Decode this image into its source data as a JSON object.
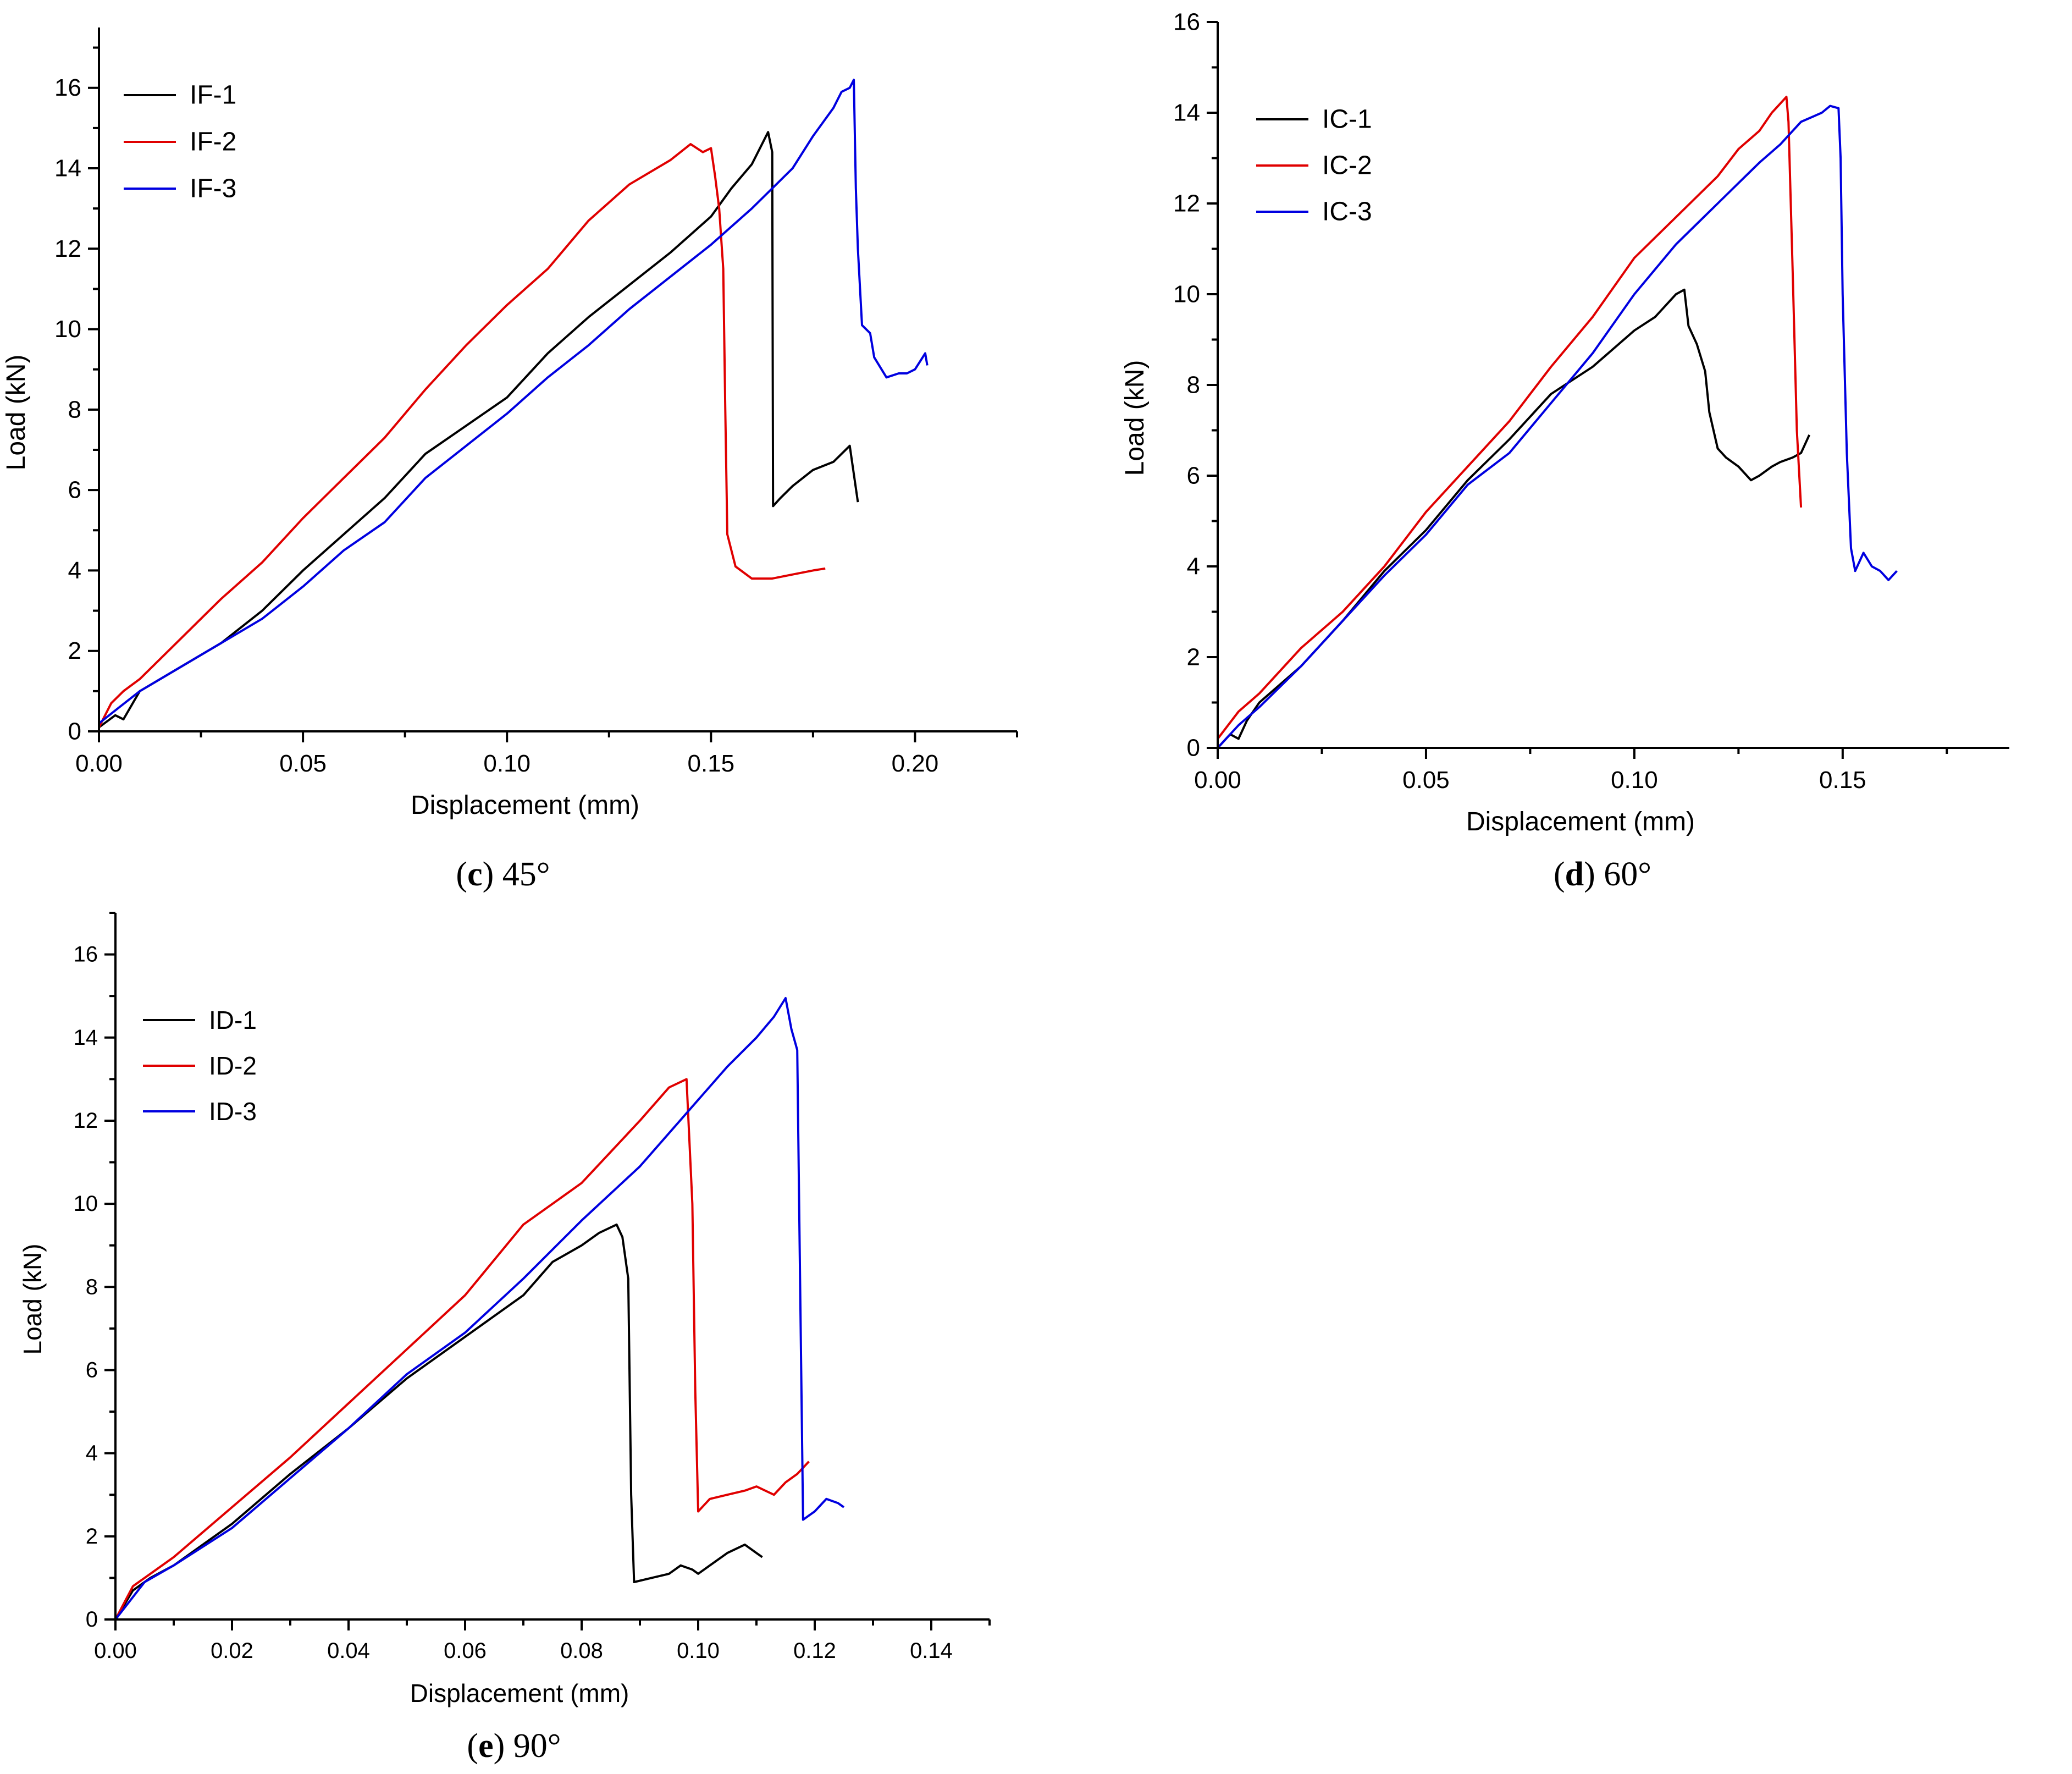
{
  "chart_data": [
    {
      "type": "line",
      "panel_label": "c",
      "caption": "45°",
      "xlabel": "Displacement (mm)",
      "ylabel": "Load (kN)",
      "xlim": [
        0,
        0.225
      ],
      "ylim": [
        0,
        17.5
      ],
      "xticks": [
        "0.00",
        "0.05",
        "0.10",
        "0.15",
        "0.20"
      ],
      "yticks": [
        "0",
        "2",
        "4",
        "6",
        "8",
        "10",
        "12",
        "14",
        "16"
      ],
      "grid": false,
      "legend_position": "top-left",
      "series": [
        {
          "name": "IF-1",
          "color": "#000000",
          "x": [
            0,
            0.004,
            0.006,
            0.01,
            0.02,
            0.03,
            0.04,
            0.05,
            0.06,
            0.07,
            0.08,
            0.09,
            0.1,
            0.11,
            0.12,
            0.13,
            0.14,
            0.15,
            0.155,
            0.16,
            0.163,
            0.164,
            0.165,
            0.1652,
            0.167,
            0.17,
            0.175,
            0.18,
            0.184,
            0.186
          ],
          "y": [
            0.1,
            0.4,
            0.3,
            1.0,
            1.6,
            2.2,
            3.0,
            4.0,
            4.9,
            5.8,
            6.9,
            7.6,
            8.3,
            9.4,
            10.3,
            11.1,
            11.9,
            12.8,
            13.5,
            14.1,
            14.7,
            14.9,
            14.4,
            5.6,
            5.8,
            6.1,
            6.5,
            6.7,
            7.1,
            5.7
          ]
        },
        {
          "name": "IF-2",
          "color": "#e00000",
          "x": [
            0,
            0.003,
            0.006,
            0.01,
            0.02,
            0.03,
            0.04,
            0.05,
            0.06,
            0.07,
            0.08,
            0.09,
            0.1,
            0.11,
            0.12,
            0.13,
            0.14,
            0.145,
            0.148,
            0.15,
            0.151,
            0.152,
            0.153,
            0.1535,
            0.154,
            0.156,
            0.16,
            0.165,
            0.17,
            0.175,
            0.178
          ],
          "y": [
            0.1,
            0.7,
            1.0,
            1.3,
            2.3,
            3.3,
            4.2,
            5.3,
            6.3,
            7.3,
            8.5,
            9.6,
            10.6,
            11.5,
            12.7,
            13.6,
            14.2,
            14.6,
            14.4,
            14.5,
            13.8,
            13.0,
            11.5,
            8.0,
            4.9,
            4.1,
            3.8,
            3.8,
            3.9,
            4.0,
            4.05
          ]
        },
        {
          "name": "IF-3",
          "color": "#0000e0",
          "x": [
            0,
            0.005,
            0.01,
            0.02,
            0.03,
            0.04,
            0.05,
            0.06,
            0.07,
            0.08,
            0.09,
            0.1,
            0.11,
            0.12,
            0.13,
            0.14,
            0.15,
            0.16,
            0.17,
            0.175,
            0.18,
            0.182,
            0.184,
            0.185,
            0.1855,
            0.186,
            0.187,
            0.189,
            0.19,
            0.193,
            0.196,
            0.198,
            0.2,
            0.2025,
            0.203
          ],
          "y": [
            0.2,
            0.6,
            1.0,
            1.6,
            2.2,
            2.8,
            3.6,
            4.5,
            5.2,
            6.3,
            7.1,
            7.9,
            8.8,
            9.6,
            10.5,
            11.3,
            12.1,
            13.0,
            14.0,
            14.8,
            15.5,
            15.9,
            16.0,
            16.2,
            13.5,
            12.0,
            10.1,
            9.9,
            9.3,
            8.8,
            8.9,
            8.9,
            9.0,
            9.4,
            9.1
          ]
        }
      ]
    },
    {
      "type": "line",
      "panel_label": "d",
      "caption": "60°",
      "xlabel": "Displacement (mm)",
      "ylabel": "Load (kN)",
      "xlim": [
        0,
        0.19
      ],
      "ylim": [
        0,
        16
      ],
      "xticks": [
        "0.00",
        "0.05",
        "0.10",
        "0.15"
      ],
      "yticks": [
        "0",
        "2",
        "4",
        "6",
        "8",
        "10",
        "12",
        "14",
        "16"
      ],
      "grid": false,
      "legend_position": "top-left",
      "series": [
        {
          "name": "IC-1",
          "color": "#000000",
          "x": [
            0,
            0.003,
            0.005,
            0.007,
            0.01,
            0.02,
            0.03,
            0.04,
            0.05,
            0.06,
            0.07,
            0.08,
            0.09,
            0.1,
            0.105,
            0.11,
            0.112,
            0.113,
            0.115,
            0.117,
            0.118,
            0.12,
            0.122,
            0.125,
            0.128,
            0.13,
            0.133,
            0.135,
            0.138,
            0.14,
            0.142
          ],
          "y": [
            0,
            0.3,
            0.2,
            0.6,
            1.0,
            1.8,
            2.8,
            3.9,
            4.8,
            5.9,
            6.8,
            7.8,
            8.4,
            9.2,
            9.5,
            10.0,
            10.1,
            9.3,
            8.9,
            8.3,
            7.4,
            6.6,
            6.4,
            6.2,
            5.9,
            6.0,
            6.2,
            6.3,
            6.4,
            6.5,
            6.9
          ]
        },
        {
          "name": "IC-2",
          "color": "#e00000",
          "x": [
            0,
            0.005,
            0.01,
            0.02,
            0.03,
            0.04,
            0.05,
            0.06,
            0.07,
            0.08,
            0.09,
            0.1,
            0.11,
            0.12,
            0.125,
            0.13,
            0.133,
            0.135,
            0.1365,
            0.137,
            0.138,
            0.139,
            0.14
          ],
          "y": [
            0.2,
            0.8,
            1.2,
            2.2,
            3.0,
            4.0,
            5.2,
            6.2,
            7.2,
            8.4,
            9.5,
            10.8,
            11.7,
            12.6,
            13.2,
            13.6,
            14.0,
            14.2,
            14.35,
            13.8,
            10.5,
            7.0,
            5.3
          ]
        },
        {
          "name": "IC-3",
          "color": "#0000e0",
          "x": [
            0,
            0.005,
            0.01,
            0.02,
            0.03,
            0.04,
            0.05,
            0.06,
            0.07,
            0.08,
            0.09,
            0.1,
            0.11,
            0.12,
            0.13,
            0.135,
            0.14,
            0.145,
            0.147,
            0.149,
            0.1495,
            0.15,
            0.151,
            0.152,
            0.153,
            0.155,
            0.157,
            0.159,
            0.161,
            0.163
          ],
          "y": [
            0,
            0.5,
            0.9,
            1.8,
            2.8,
            3.8,
            4.7,
            5.8,
            6.5,
            7.6,
            8.7,
            10.0,
            11.1,
            12.0,
            12.9,
            13.3,
            13.8,
            14.0,
            14.15,
            14.1,
            13.0,
            10.0,
            6.5,
            4.4,
            3.9,
            4.3,
            4.0,
            3.9,
            3.7,
            3.9
          ]
        }
      ]
    },
    {
      "type": "line",
      "panel_label": "e",
      "caption": "90°",
      "xlabel": "Displacement (mm)",
      "ylabel": "Load (kN)",
      "xlim": [
        0,
        0.15
      ],
      "ylim": [
        0,
        17
      ],
      "xticks": [
        "0.00",
        "0.02",
        "0.04",
        "0.06",
        "0.08",
        "0.10",
        "0.12",
        "0.14"
      ],
      "yticks": [
        "0",
        "2",
        "4",
        "6",
        "8",
        "10",
        "12",
        "14",
        "16"
      ],
      "grid": false,
      "legend_position": "top-left",
      "series": [
        {
          "name": "ID-1",
          "color": "#000000",
          "x": [
            0,
            0.003,
            0.006,
            0.01,
            0.02,
            0.03,
            0.04,
            0.05,
            0.06,
            0.07,
            0.075,
            0.08,
            0.083,
            0.086,
            0.087,
            0.088,
            0.0885,
            0.089,
            0.092,
            0.095,
            0.097,
            0.099,
            0.1,
            0.102,
            0.105,
            0.108,
            0.11,
            0.111
          ],
          "y": [
            0,
            0.7,
            1.0,
            1.3,
            2.3,
            3.5,
            4.6,
            5.8,
            6.8,
            7.8,
            8.6,
            9.0,
            9.3,
            9.5,
            9.2,
            8.2,
            3.0,
            0.9,
            1.0,
            1.1,
            1.3,
            1.2,
            1.1,
            1.3,
            1.6,
            1.8,
            1.6,
            1.5
          ]
        },
        {
          "name": "ID-2",
          "color": "#e00000",
          "x": [
            0,
            0.003,
            0.006,
            0.01,
            0.02,
            0.03,
            0.04,
            0.05,
            0.06,
            0.07,
            0.08,
            0.09,
            0.095,
            0.098,
            0.099,
            0.0995,
            0.1,
            0.102,
            0.105,
            0.108,
            0.11,
            0.113,
            0.115,
            0.117,
            0.119
          ],
          "y": [
            0,
            0.8,
            1.1,
            1.5,
            2.7,
            3.9,
            5.2,
            6.5,
            7.8,
            9.5,
            10.5,
            12.0,
            12.8,
            13.0,
            10.0,
            5.5,
            2.6,
            2.9,
            3.0,
            3.1,
            3.2,
            3.0,
            3.3,
            3.5,
            3.8
          ]
        },
        {
          "name": "ID-3",
          "color": "#0000e0",
          "x": [
            0,
            0.005,
            0.01,
            0.02,
            0.03,
            0.04,
            0.05,
            0.06,
            0.07,
            0.08,
            0.09,
            0.1,
            0.105,
            0.11,
            0.113,
            0.115,
            0.116,
            0.117,
            0.1175,
            0.118,
            0.119,
            0.12,
            0.122,
            0.124,
            0.125
          ],
          "y": [
            0,
            0.9,
            1.3,
            2.2,
            3.4,
            4.6,
            5.9,
            6.9,
            8.2,
            9.6,
            10.9,
            12.5,
            13.3,
            14.0,
            14.5,
            14.95,
            14.2,
            13.7,
            8.0,
            2.4,
            2.5,
            2.6,
            2.9,
            2.8,
            2.7
          ]
        }
      ]
    }
  ]
}
